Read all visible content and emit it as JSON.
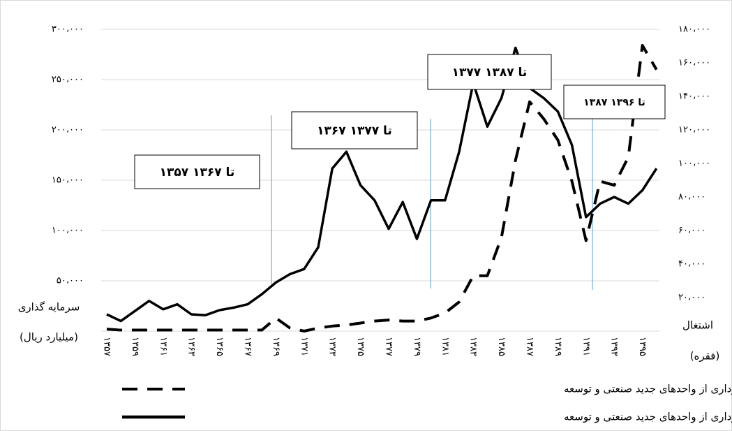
{
  "chart_data": {
    "type": "line",
    "categories": [
      "۱۳۵۷",
      null,
      "۱۳۵۹",
      null,
      "۱۳۶۱",
      null,
      "۱۳۶۳",
      null,
      "۱۳۶۵",
      null,
      "۱۳۶۷",
      null,
      "۱۳۶۹",
      null,
      "۱۳۷۱",
      null,
      "۱۳۷۳",
      null,
      "۱۳۷۵",
      null,
      "۱۳۷۷",
      null,
      "۱۳۷۹",
      null,
      "۱۳۸۱",
      null,
      "۱۳۸۳",
      null,
      "۱۳۸۵",
      null,
      "۱۳۸۷",
      null,
      "۱۳۸۹",
      null,
      "۱۳۹۱",
      null,
      "۱۳۹۳",
      null,
      "۱۳۹۵",
      null
    ],
    "series": [
      {
        "name": "سرمایه گذاری پروانه بهره برداری از واحدهای جدید صنعتی و توسعه",
        "color": "#000000",
        "dash": true,
        "values": [
          2000,
          1000,
          1000,
          1000,
          1000,
          1000,
          1000,
          1000,
          1000,
          1000,
          1000,
          1000,
          13000,
          3000,
          0,
          3000,
          5000,
          6000,
          8000,
          10000,
          11000,
          10000,
          10000,
          13000,
          18000,
          29000,
          55000,
          55000,
          93000,
          170000,
          228000,
          211000,
          190000,
          149000,
          90000,
          149000,
          145000,
          173000,
          284000,
          260000
        ]
      },
      {
        "name": "اشتغال ایجاد شده پروانه بهره برداری از واحدهای جدید صنعتی و توسعه",
        "color": "#000000",
        "dash": false,
        "axis": "y2",
        "values": [
          10000,
          6000,
          12000,
          18000,
          13000,
          16000,
          10000,
          9500,
          12500,
          14000,
          16000,
          22000,
          29000,
          34000,
          37000,
          50000,
          97000,
          107000,
          87000,
          78000,
          61000,
          77000,
          55000,
          78000,
          78000,
          107000,
          148000,
          122000,
          139000,
          169000,
          145000,
          139000,
          131000,
          111000,
          68000,
          76000,
          80000,
          76000,
          84000,
          97000
        ]
      }
    ],
    "ylim": [
      0,
      300000
    ],
    "yticks": [
      {
        "value": 50000,
        "label": "۵۰،۰۰۰"
      },
      {
        "value": 100000,
        "label": "۱۰۰،۰۰۰"
      },
      {
        "value": 150000,
        "label": "۱۵۰،۰۰۰"
      },
      {
        "value": 200000,
        "label": "۲۰۰،۰۰۰"
      },
      {
        "value": 250000,
        "label": "۲۵۰،۰۰۰"
      },
      {
        "value": 300000,
        "label": "۳۰۰،۰۰۰"
      }
    ],
    "y2lim": [
      0,
      180000
    ],
    "y2ticks": [
      {
        "value": 20000,
        "label": "۲۰،۰۰۰"
      },
      {
        "value": 40000,
        "label": "۴۰،۰۰۰"
      },
      {
        "value": 60000,
        "label": "۶۰،۰۰۰"
      },
      {
        "value": 80000,
        "label": "۸۰،۰۰۰"
      },
      {
        "value": 100000,
        "label": "۱۰۰،۰۰۰"
      },
      {
        "value": 120000,
        "label": "۱۲۰،۰۰۰"
      },
      {
        "value": 140000,
        "label": "۱۴۰،۰۰۰"
      },
      {
        "value": 160000,
        "label": "۱۶۰،۰۰۰"
      },
      {
        "value": 180000,
        "label": "۱۸۰،۰۰۰"
      }
    ],
    "ylabel": [
      "سرمایه گذاری",
      "(میلیارد ریال)"
    ],
    "y2label": [
      "اشتغال",
      "(فقره)"
    ],
    "annotations": [
      "۱۳۵۷ تا ۱۳۶۷",
      "۱۳۶۷ تا ۱۳۷۷",
      "۱۳۷۷ تا ۱۳۸۷",
      "۱۳۸۷ تا ۱۳۹۶"
    ],
    "grid": true,
    "legend": "bottom"
  }
}
